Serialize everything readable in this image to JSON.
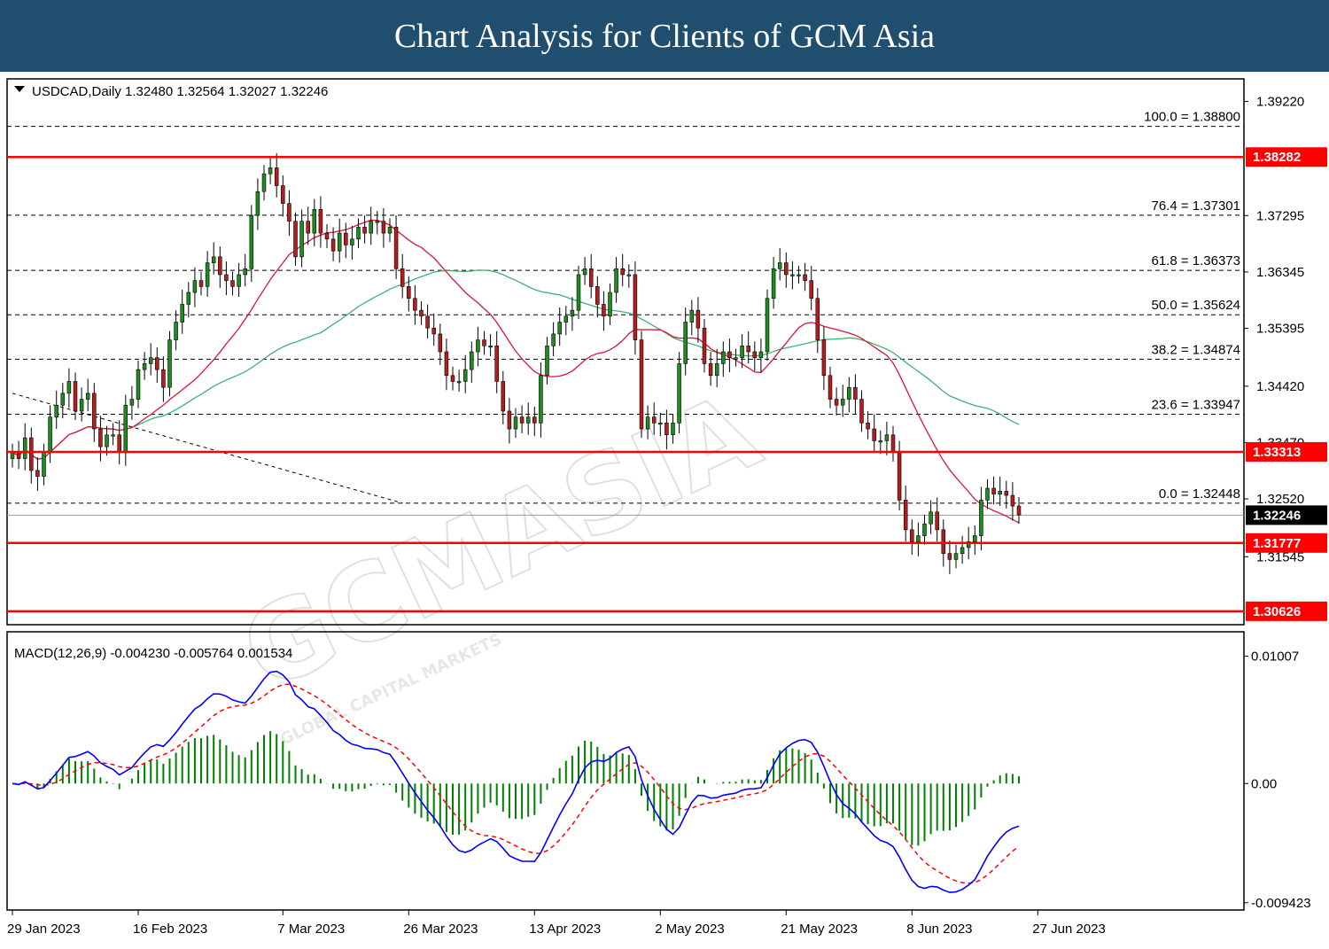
{
  "banner": {
    "title": "Chart Analysis for Clients of GCM Asia"
  },
  "watermark": {
    "main": "GCMASIA",
    "sub": "GLOBAL CAPITAL MARKETS"
  },
  "colors": {
    "bull": "#1e8c1e",
    "bear": "#b41e1e",
    "sr_line": "#ff0000",
    "ma_fast": "#dc143c",
    "ma_slow": "#3cb371",
    "macd_line": "#0000ff",
    "signal_line": "#ff0000",
    "histogram": "#008000",
    "axis_tag_bg": "#ff0000",
    "price_tag_bg": "#000000"
  },
  "chart_data": [
    {
      "type": "candlestick",
      "header": "USDCAD,Daily  1.32480 1.32564 1.32027 1.32246",
      "ylim": [
        1.304,
        1.396
      ],
      "y_ticks": [
        "1.39220",
        "1.37295",
        "1.36345",
        "1.35395",
        "1.34420",
        "1.33470",
        "1.32520",
        "1.31545"
      ],
      "x_ticks": [
        {
          "label": "29 Jan 2023",
          "i": 0
        },
        {
          "label": "16 Feb 2023",
          "i": 20
        },
        {
          "label": "7 Mar 2023",
          "i": 43
        },
        {
          "label": "26 Mar 2023",
          "i": 63
        },
        {
          "label": "13 Apr 2023",
          "i": 83
        },
        {
          "label": "2 May 2023",
          "i": 103
        },
        {
          "label": "21 May 2023",
          "i": 123
        },
        {
          "label": "8 Jun 2023",
          "i": 143
        },
        {
          "label": "27 Jun 2023",
          "i": 163
        }
      ],
      "close": [
        1.333,
        1.332,
        1.3355,
        1.33,
        1.329,
        1.333,
        1.339,
        1.341,
        1.343,
        1.345,
        1.34,
        1.342,
        1.343,
        1.337,
        1.334,
        1.336,
        1.336,
        1.333,
        1.341,
        1.342,
        1.347,
        1.348,
        1.349,
        1.347,
        1.344,
        1.352,
        1.355,
        1.358,
        1.36,
        1.362,
        1.361,
        1.365,
        1.366,
        1.363,
        1.362,
        1.361,
        1.363,
        1.364,
        1.373,
        1.377,
        1.38,
        1.381,
        1.378,
        1.375,
        1.372,
        1.366,
        1.372,
        1.37,
        1.374,
        1.37,
        1.369,
        1.367,
        1.37,
        1.368,
        1.369,
        1.371,
        1.37,
        1.372,
        1.372,
        1.37,
        1.371,
        1.364,
        1.361,
        1.359,
        1.357,
        1.356,
        1.354,
        1.353,
        1.35,
        1.346,
        1.345,
        1.345,
        1.347,
        1.35,
        1.352,
        1.351,
        1.351,
        1.345,
        1.34,
        1.337,
        1.339,
        1.338,
        1.339,
        1.338,
        1.346,
        1.351,
        1.353,
        1.355,
        1.356,
        1.357,
        1.363,
        1.364,
        1.361,
        1.358,
        1.356,
        1.36,
        1.364,
        1.363,
        1.363,
        1.352,
        1.337,
        1.339,
        1.338,
        1.338,
        1.336,
        1.338,
        1.348,
        1.355,
        1.357,
        1.354,
        1.348,
        1.346,
        1.348,
        1.35,
        1.349,
        1.349,
        1.351,
        1.35,
        1.349,
        1.35,
        1.359,
        1.364,
        1.365,
        1.363,
        1.363,
        1.363,
        1.362,
        1.359,
        1.352,
        1.346,
        1.342,
        1.341,
        1.342,
        1.344,
        1.342,
        1.338,
        1.337,
        1.335,
        1.335,
        1.336,
        1.333,
        1.325,
        1.32,
        1.318,
        1.319,
        1.321,
        1.323,
        1.32,
        1.316,
        1.315,
        1.316,
        1.317,
        1.318,
        1.319,
        1.325,
        1.327,
        1.326,
        1.3265,
        1.3258,
        1.324,
        1.3225
      ],
      "overlays": [
        {
          "name": "MA fast",
          "color_key": "ma_fast"
        },
        {
          "name": "MA slow",
          "color_key": "ma_slow"
        }
      ],
      "fibonacci": [
        {
          "label": "100.0 = 1.38800",
          "price": 1.388
        },
        {
          "label": "76.4 = 1.37301",
          "price": 1.37301
        },
        {
          "label": "61.8 = 1.36373",
          "price": 1.36373
        },
        {
          "label": "50.0 = 1.35624",
          "price": 1.35624
        },
        {
          "label": "38.2 = 1.34874",
          "price": 1.34874
        },
        {
          "label": "23.6 = 1.33947",
          "price": 1.33947
        },
        {
          "label": "0.0 = 1.32448",
          "price": 1.32448
        }
      ],
      "support_resistance": [
        {
          "label": "1.38282",
          "price": 1.38282
        },
        {
          "label": "1.33313",
          "price": 1.33313
        },
        {
          "label": "1.31777",
          "price": 1.31777
        },
        {
          "label": "1.30626",
          "price": 1.30626
        }
      ],
      "current_price": {
        "label": "1.32246",
        "price": 1.32246
      },
      "trendline": {
        "from": {
          "i": 0,
          "price": 1.343
        },
        "to": {
          "i": 62,
          "price": 1.3245
        }
      }
    },
    {
      "type": "macd",
      "header": "MACD(12,26,9) -0.004230 -0.005764 0.001534",
      "ylim": [
        -0.01,
        0.012
      ],
      "y_ticks": [
        {
          "label": "0.01007",
          "value": 0.01007
        },
        {
          "label": "0.00",
          "value": 0.0
        },
        {
          "label": "-0.009423",
          "value": -0.009423
        }
      ],
      "series": [
        {
          "name": "MACD",
          "color_key": "macd_line",
          "style": "solid"
        },
        {
          "name": "Signal",
          "color_key": "signal_line",
          "style": "dashed"
        },
        {
          "name": "Histogram",
          "color_key": "histogram",
          "style": "bars"
        }
      ]
    }
  ]
}
